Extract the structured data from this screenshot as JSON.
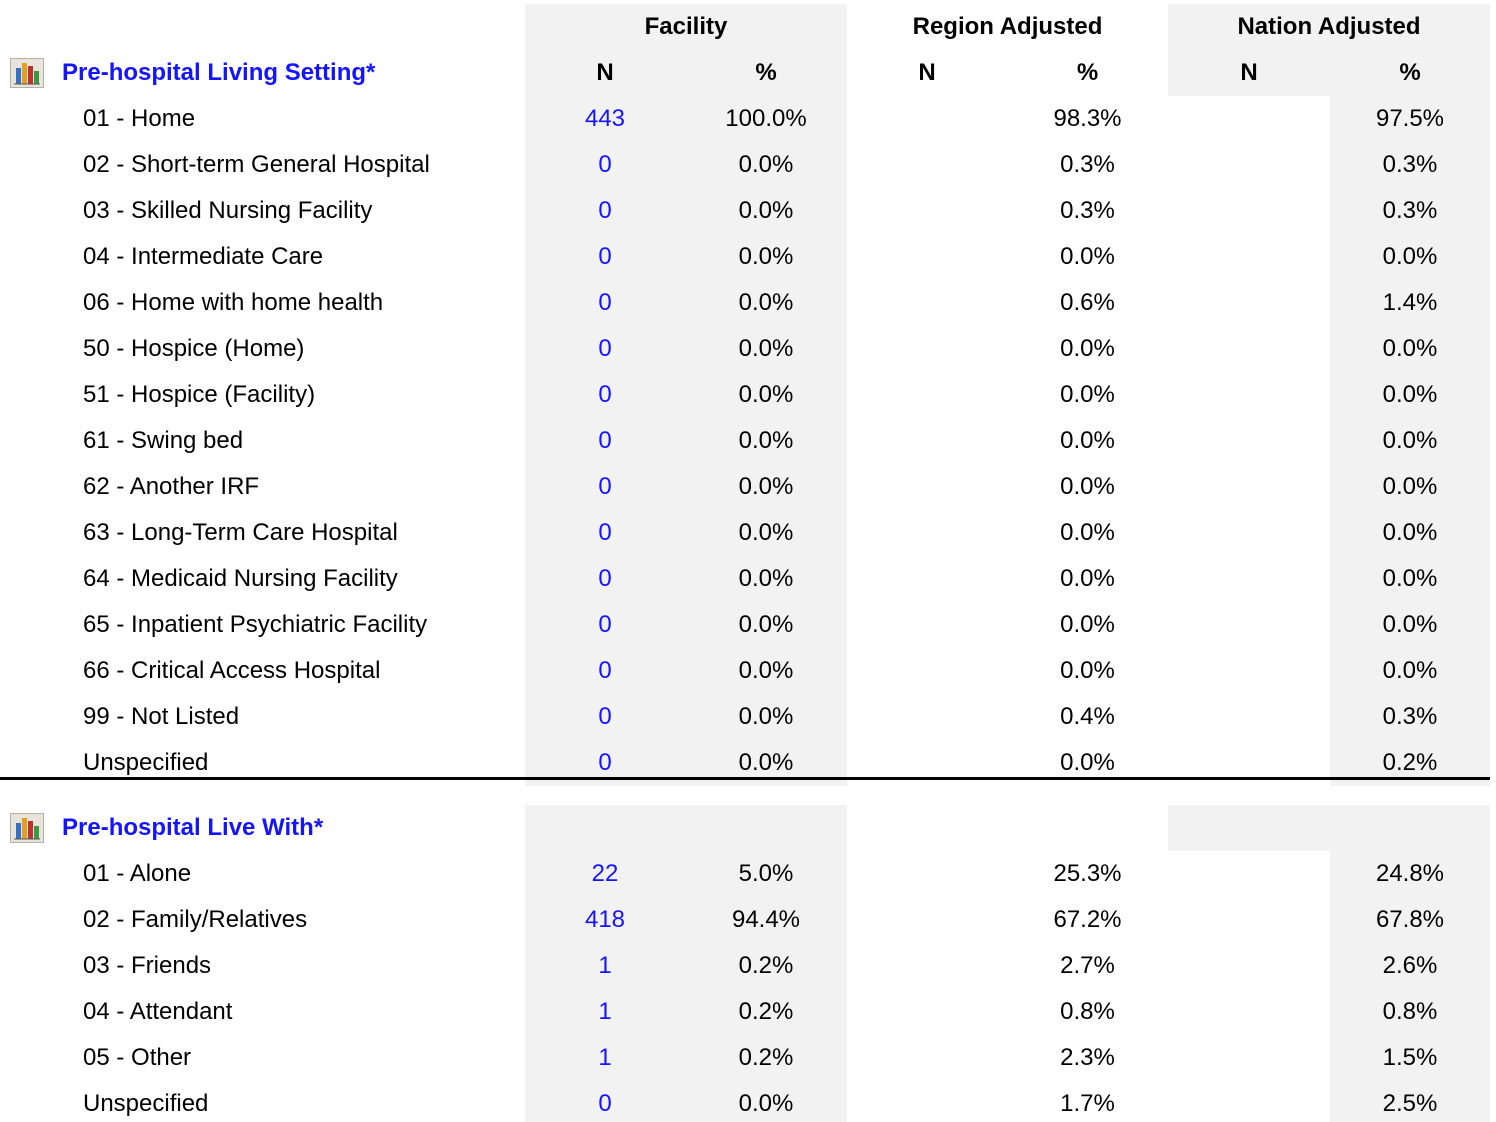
{
  "header": {
    "groups": [
      "Facility",
      "Region Adjusted",
      "Nation Adjusted"
    ],
    "columns": [
      "N",
      "%",
      "N",
      "%",
      "N",
      "%"
    ]
  },
  "sections": [
    {
      "title": "Pre-hospital Living Setting*",
      "rows": [
        {
          "label": "01 - Home",
          "n": 443,
          "facility_pct": "100.0%",
          "region_pct": "98.3%",
          "nation_pct": "97.5%"
        },
        {
          "label": "02 - Short-term General Hospital",
          "n": 0,
          "facility_pct": "0.0%",
          "region_pct": "0.3%",
          "nation_pct": "0.3%"
        },
        {
          "label": "03 - Skilled Nursing Facility",
          "n": 0,
          "facility_pct": "0.0%",
          "region_pct": "0.3%",
          "nation_pct": "0.3%"
        },
        {
          "label": "04 - Intermediate Care",
          "n": 0,
          "facility_pct": "0.0%",
          "region_pct": "0.0%",
          "nation_pct": "0.0%"
        },
        {
          "label": "06 - Home with home health",
          "n": 0,
          "facility_pct": "0.0%",
          "region_pct": "0.6%",
          "nation_pct": "1.4%"
        },
        {
          "label": "50 - Hospice (Home)",
          "n": 0,
          "facility_pct": "0.0%",
          "region_pct": "0.0%",
          "nation_pct": "0.0%"
        },
        {
          "label": "51 - Hospice (Facility)",
          "n": 0,
          "facility_pct": "0.0%",
          "region_pct": "0.0%",
          "nation_pct": "0.0%"
        },
        {
          "label": "61 - Swing bed",
          "n": 0,
          "facility_pct": "0.0%",
          "region_pct": "0.0%",
          "nation_pct": "0.0%"
        },
        {
          "label": "62 - Another IRF",
          "n": 0,
          "facility_pct": "0.0%",
          "region_pct": "0.0%",
          "nation_pct": "0.0%"
        },
        {
          "label": "63 - Long-Term Care Hospital",
          "n": 0,
          "facility_pct": "0.0%",
          "region_pct": "0.0%",
          "nation_pct": "0.0%"
        },
        {
          "label": "64 - Medicaid Nursing Facility",
          "n": 0,
          "facility_pct": "0.0%",
          "region_pct": "0.0%",
          "nation_pct": "0.0%"
        },
        {
          "label": "65 - Inpatient Psychiatric Facility",
          "n": 0,
          "facility_pct": "0.0%",
          "region_pct": "0.0%",
          "nation_pct": "0.0%"
        },
        {
          "label": "66 - Critical Access Hospital",
          "n": 0,
          "facility_pct": "0.0%",
          "region_pct": "0.0%",
          "nation_pct": "0.0%"
        },
        {
          "label": "99 - Not Listed",
          "n": 0,
          "facility_pct": "0.0%",
          "region_pct": "0.4%",
          "nation_pct": "0.3%"
        },
        {
          "label": "Unspecified",
          "n": 0,
          "facility_pct": "0.0%",
          "region_pct": "0.0%",
          "nation_pct": "0.2%"
        }
      ]
    },
    {
      "title": "Pre-hospital Live With*",
      "rows": [
        {
          "label": "01 - Alone",
          "n": 22,
          "facility_pct": "5.0%",
          "region_pct": "25.3%",
          "nation_pct": "24.8%"
        },
        {
          "label": "02 - Family/Relatives",
          "n": 418,
          "facility_pct": "94.4%",
          "region_pct": "67.2%",
          "nation_pct": "67.8%"
        },
        {
          "label": "03 - Friends",
          "n": 1,
          "facility_pct": "0.2%",
          "region_pct": "2.7%",
          "nation_pct": "2.6%"
        },
        {
          "label": "04 - Attendant",
          "n": 1,
          "facility_pct": "0.2%",
          "region_pct": "0.8%",
          "nation_pct": "0.8%"
        },
        {
          "label": "05 - Other",
          "n": 1,
          "facility_pct": "0.2%",
          "region_pct": "2.3%",
          "nation_pct": "1.5%"
        },
        {
          "label": "Unspecified",
          "n": 0,
          "facility_pct": "0.0%",
          "region_pct": "1.7%",
          "nation_pct": "2.5%"
        }
      ]
    }
  ]
}
